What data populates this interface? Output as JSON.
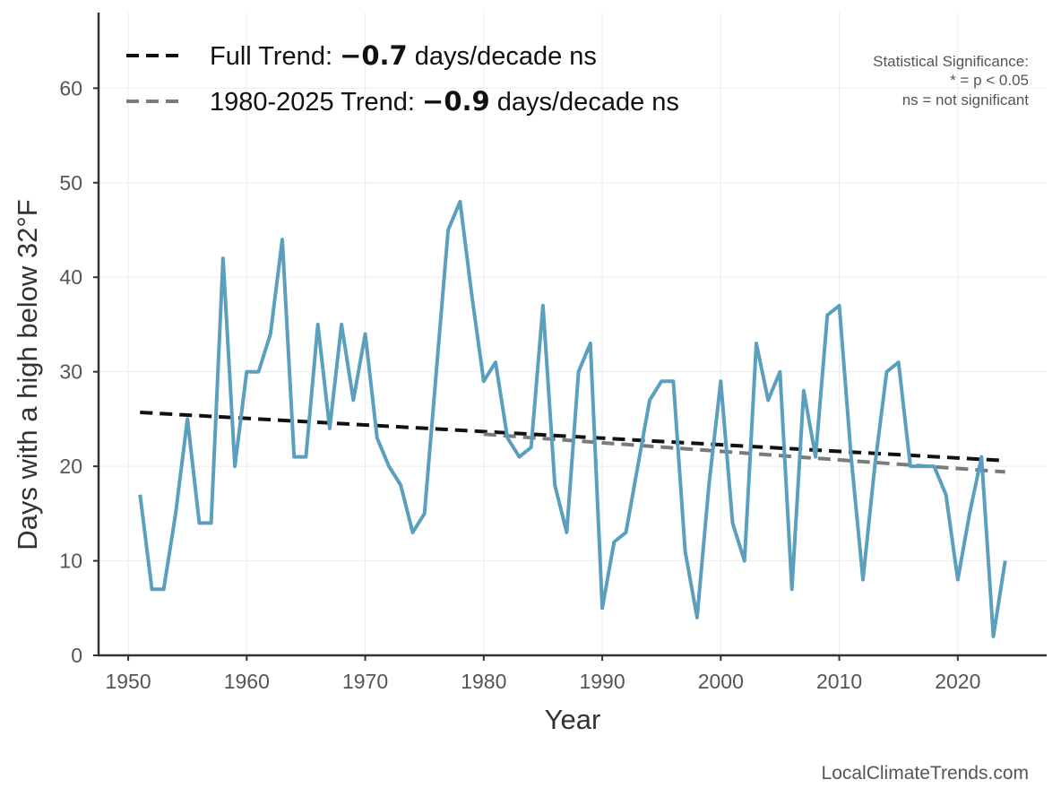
{
  "chart_data": {
    "type": "line",
    "xlabel": "Year",
    "ylabel": "Days with a high below 32°F",
    "xlim": [
      1947.5,
      2027.5
    ],
    "ylim": [
      0,
      68
    ],
    "xticks": [
      1950,
      1960,
      1970,
      1980,
      1990,
      2000,
      2010,
      2020
    ],
    "yticks": [
      0,
      10,
      20,
      30,
      40,
      50,
      60
    ],
    "grid": true,
    "legend_position": "top-left",
    "series": [
      {
        "color": "#5a9fbd",
        "x": [
          1951,
          1952,
          1953,
          1954,
          1955,
          1956,
          1957,
          1958,
          1959,
          1960,
          1961,
          1962,
          1963,
          1964,
          1965,
          1966,
          1967,
          1968,
          1969,
          1970,
          1971,
          1972,
          1973,
          1974,
          1975,
          1976,
          1977,
          1978,
          1979,
          1980,
          1981,
          1982,
          1983,
          1984,
          1985,
          1986,
          1987,
          1988,
          1989,
          1990,
          1991,
          1992,
          1993,
          1994,
          1995,
          1996,
          1997,
          1998,
          1999,
          2000,
          2001,
          2002,
          2003,
          2004,
          2005,
          2006,
          2007,
          2008,
          2009,
          2010,
          2011,
          2012,
          2013,
          2014,
          2015,
          2016,
          2017,
          2018,
          2019,
          2020,
          2021,
          2022,
          2023,
          2024
        ],
        "values": [
          17,
          7,
          7,
          15,
          25,
          14,
          14,
          42,
          20,
          30,
          30,
          34,
          44,
          21,
          21,
          35,
          24,
          35,
          27,
          34,
          23,
          20,
          18,
          13,
          15,
          30,
          45,
          48,
          38,
          29,
          31,
          23,
          21,
          22,
          37,
          18,
          13,
          30,
          33,
          5,
          12,
          13,
          20,
          27,
          29,
          29,
          11,
          4,
          18,
          29,
          14,
          10,
          33,
          27,
          30,
          7,
          28,
          21,
          36,
          37,
          21,
          8,
          20,
          30,
          31,
          20,
          20,
          20,
          17,
          8,
          15,
          21,
          2,
          10
        ]
      },
      {
        "name": "Full Trend",
        "color": "#111111",
        "dashed": true,
        "x": [
          1951,
          2024
        ],
        "values": [
          25.7,
          20.6
        ]
      },
      {
        "name": "1980-2025 Trend",
        "color": "#7a7a7a",
        "dashed": true,
        "x": [
          1980,
          2024
        ],
        "values": [
          23.4,
          19.4
        ]
      }
    ]
  },
  "legend": {
    "entries": [
      {
        "label": "Full Trend: ",
        "value": "−0.7",
        "suffix": " days/decade ns"
      },
      {
        "label": "1980-2025 Trend: ",
        "value": "−0.9",
        "suffix": " days/decade ns"
      }
    ]
  },
  "significance": {
    "title": "Statistical Significance:",
    "line1": "* = p < 0.05",
    "line2": "ns = not significant"
  },
  "credit": "LocalClimateTrends.com"
}
